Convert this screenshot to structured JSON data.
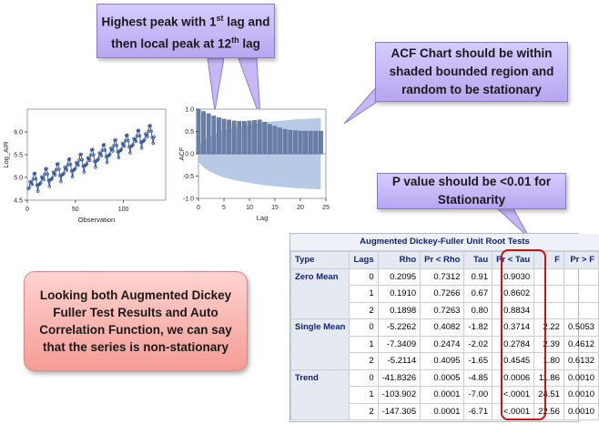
{
  "callouts": {
    "peak": {
      "line1_prefix": "Highest peak with 1",
      "line1_sup": "st",
      "line1_suffix": " lag and",
      "line2_prefix": "then local peak at 12",
      "line2_sup": "th",
      "line2_suffix": " lag"
    },
    "acf": {
      "line1": "ACF Chart should be within",
      "line2": "shaded bounded region and",
      "line3": "random to be stationary"
    },
    "pvalue": {
      "line1": "P value should be <0.01 for",
      "line2": "Stationarity"
    }
  },
  "conclusion": {
    "text": "Looking both Augmented Dickey Fuller Test Results and Auto Correlation Function, we can say that the series is non-stationary"
  },
  "colors": {
    "callout_fill": "#c9bcf8",
    "conclusion_fill": "#f7aaa4",
    "series": "#2b4d99",
    "acf_bar": "#6a7fa8",
    "acf_band": "#a9bfe0",
    "highlight": "#cc1111"
  },
  "chart_data": [
    {
      "type": "line",
      "xlabel": "Observation",
      "ylabel": "Log_AIR",
      "xlim": [
        0,
        144
      ],
      "ylim": [
        4.5,
        6.5
      ],
      "xticks": [
        "0",
        "50",
        "100"
      ],
      "yticks": [
        "4.5",
        "5.0",
        "5.5",
        "6.0"
      ],
      "marker": "circle",
      "seasonal_pattern": [
        0.0,
        0.02,
        0.14,
        0.11,
        0.06,
        0.17,
        0.28,
        0.28,
        0.15,
        0.0,
        -0.14,
        0.0
      ],
      "base_start": 4.75,
      "annual_growth": 0.105,
      "n": 132
    },
    {
      "type": "bar",
      "xlabel": "Lag",
      "ylabel": "ACF",
      "xlim": [
        0,
        25
      ],
      "ylim": [
        -1.0,
        1.0
      ],
      "xticks": [
        "0",
        "5",
        "10",
        "15",
        "20",
        "25"
      ],
      "yticks": [
        "-1.0",
        "-0.5",
        "0.0",
        "0.5",
        "1.0"
      ],
      "lags": [
        0,
        1,
        2,
        3,
        4,
        5,
        6,
        7,
        8,
        9,
        10,
        11,
        12,
        13,
        14,
        15,
        16,
        17,
        18,
        19,
        20,
        21,
        22,
        23,
        24
      ],
      "values": [
        1.0,
        0.95,
        0.9,
        0.85,
        0.81,
        0.78,
        0.76,
        0.74,
        0.73,
        0.73,
        0.74,
        0.75,
        0.76,
        0.71,
        0.66,
        0.62,
        0.58,
        0.55,
        0.53,
        0.52,
        0.51,
        0.51,
        0.51,
        0.51,
        0.51
      ],
      "band_upper": [
        0.18,
        0.3,
        0.38,
        0.44,
        0.49,
        0.53,
        0.56,
        0.59,
        0.61,
        0.63,
        0.65,
        0.67,
        0.69,
        0.71,
        0.72,
        0.73,
        0.74,
        0.75,
        0.76,
        0.77,
        0.78,
        0.78,
        0.79,
        0.79,
        0.8
      ]
    },
    {
      "type": "table",
      "title": "Augmented Dickey-Fuller Unit Root Tests",
      "columns": [
        "Type",
        "Lags",
        "Rho",
        "Pr < Rho",
        "Tau",
        "Pr < Tau",
        "F",
        "Pr > F"
      ],
      "rows": [
        [
          "Zero Mean",
          "0",
          "0.2095",
          "0.7312",
          "0.91",
          "0.9030",
          "",
          ""
        ],
        [
          "",
          "1",
          "0.1910",
          "0.7266",
          "0.67",
          "0.8602",
          "",
          ""
        ],
        [
          "",
          "2",
          "0.1898",
          "0.7263",
          "0.80",
          "0.8834",
          "",
          ""
        ],
        [
          "Single Mean",
          "0",
          "-5.2262",
          "0.4082",
          "-1.82",
          "0.3714",
          "2.22",
          "0.5053"
        ],
        [
          "",
          "1",
          "-7.3409",
          "0.2474",
          "-2.02",
          "0.2784",
          "2.39",
          "0.4612"
        ],
        [
          "",
          "2",
          "-5.2114",
          "0.4095",
          "-1.65",
          "0.4545",
          "1.80",
          "0.6132"
        ],
        [
          "Trend",
          "0",
          "-41.8326",
          "0.0005",
          "-4.85",
          "0.0006",
          "11.86",
          "0.0010"
        ],
        [
          "",
          "1",
          "-103.902",
          "0.0001",
          "-7.00",
          "<.0001",
          "24.51",
          "0.0010"
        ],
        [
          "",
          "2",
          "-147.305",
          "0.0001",
          "-6.71",
          "<.0001",
          "22.56",
          "0.0010"
        ]
      ]
    }
  ]
}
